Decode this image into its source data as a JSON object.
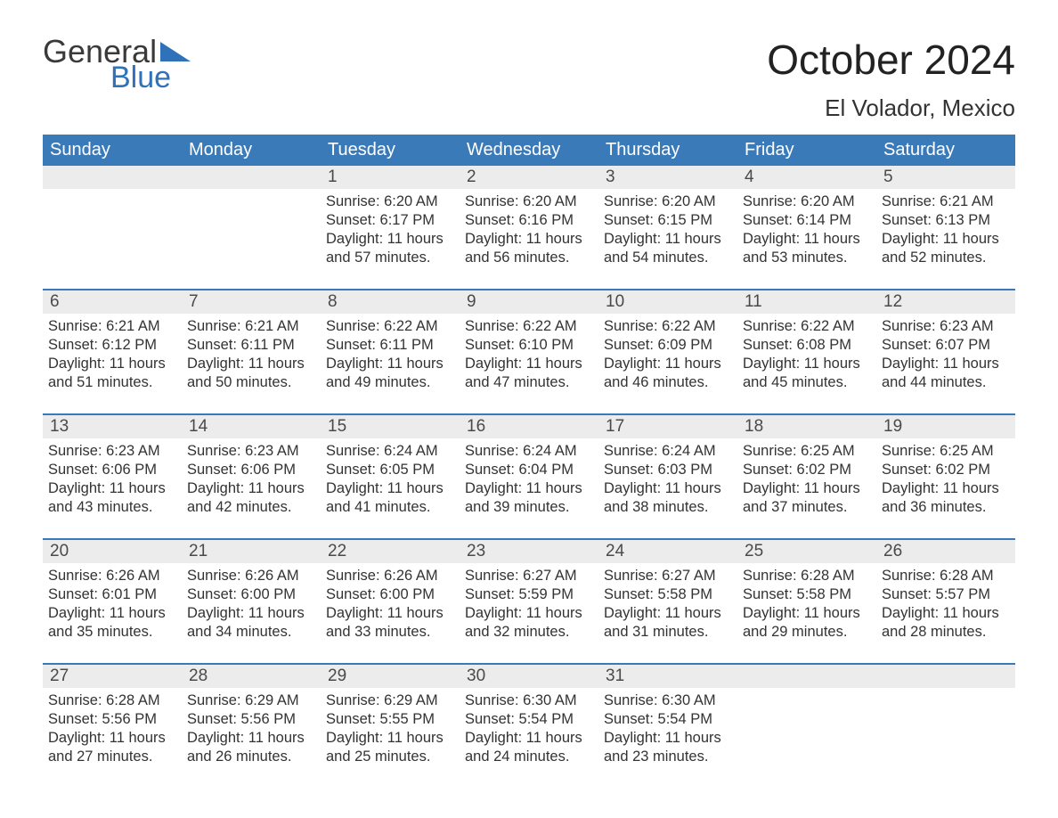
{
  "brand": {
    "general": "General",
    "blue": "Blue"
  },
  "title": "October 2024",
  "location": "El Volador, Mexico",
  "colors": {
    "header_bg": "#3a7ab8",
    "daynum_bg": "#ececec",
    "week_border": "#3a7ab8",
    "text": "#333333",
    "brand_blue": "#2f72b9"
  },
  "dow": [
    "Sunday",
    "Monday",
    "Tuesday",
    "Wednesday",
    "Thursday",
    "Friday",
    "Saturday"
  ],
  "weeks": [
    [
      null,
      null,
      {
        "n": "1",
        "sr": "Sunrise: 6:20 AM",
        "ss": "Sunset: 6:17 PM",
        "d1": "Daylight: 11 hours",
        "d2": "and 57 minutes."
      },
      {
        "n": "2",
        "sr": "Sunrise: 6:20 AM",
        "ss": "Sunset: 6:16 PM",
        "d1": "Daylight: 11 hours",
        "d2": "and 56 minutes."
      },
      {
        "n": "3",
        "sr": "Sunrise: 6:20 AM",
        "ss": "Sunset: 6:15 PM",
        "d1": "Daylight: 11 hours",
        "d2": "and 54 minutes."
      },
      {
        "n": "4",
        "sr": "Sunrise: 6:20 AM",
        "ss": "Sunset: 6:14 PM",
        "d1": "Daylight: 11 hours",
        "d2": "and 53 minutes."
      },
      {
        "n": "5",
        "sr": "Sunrise: 6:21 AM",
        "ss": "Sunset: 6:13 PM",
        "d1": "Daylight: 11 hours",
        "d2": "and 52 minutes."
      }
    ],
    [
      {
        "n": "6",
        "sr": "Sunrise: 6:21 AM",
        "ss": "Sunset: 6:12 PM",
        "d1": "Daylight: 11 hours",
        "d2": "and 51 minutes."
      },
      {
        "n": "7",
        "sr": "Sunrise: 6:21 AM",
        "ss": "Sunset: 6:11 PM",
        "d1": "Daylight: 11 hours",
        "d2": "and 50 minutes."
      },
      {
        "n": "8",
        "sr": "Sunrise: 6:22 AM",
        "ss": "Sunset: 6:11 PM",
        "d1": "Daylight: 11 hours",
        "d2": "and 49 minutes."
      },
      {
        "n": "9",
        "sr": "Sunrise: 6:22 AM",
        "ss": "Sunset: 6:10 PM",
        "d1": "Daylight: 11 hours",
        "d2": "and 47 minutes."
      },
      {
        "n": "10",
        "sr": "Sunrise: 6:22 AM",
        "ss": "Sunset: 6:09 PM",
        "d1": "Daylight: 11 hours",
        "d2": "and 46 minutes."
      },
      {
        "n": "11",
        "sr": "Sunrise: 6:22 AM",
        "ss": "Sunset: 6:08 PM",
        "d1": "Daylight: 11 hours",
        "d2": "and 45 minutes."
      },
      {
        "n": "12",
        "sr": "Sunrise: 6:23 AM",
        "ss": "Sunset: 6:07 PM",
        "d1": "Daylight: 11 hours",
        "d2": "and 44 minutes."
      }
    ],
    [
      {
        "n": "13",
        "sr": "Sunrise: 6:23 AM",
        "ss": "Sunset: 6:06 PM",
        "d1": "Daylight: 11 hours",
        "d2": "and 43 minutes."
      },
      {
        "n": "14",
        "sr": "Sunrise: 6:23 AM",
        "ss": "Sunset: 6:06 PM",
        "d1": "Daylight: 11 hours",
        "d2": "and 42 minutes."
      },
      {
        "n": "15",
        "sr": "Sunrise: 6:24 AM",
        "ss": "Sunset: 6:05 PM",
        "d1": "Daylight: 11 hours",
        "d2": "and 41 minutes."
      },
      {
        "n": "16",
        "sr": "Sunrise: 6:24 AM",
        "ss": "Sunset: 6:04 PM",
        "d1": "Daylight: 11 hours",
        "d2": "and 39 minutes."
      },
      {
        "n": "17",
        "sr": "Sunrise: 6:24 AM",
        "ss": "Sunset: 6:03 PM",
        "d1": "Daylight: 11 hours",
        "d2": "and 38 minutes."
      },
      {
        "n": "18",
        "sr": "Sunrise: 6:25 AM",
        "ss": "Sunset: 6:02 PM",
        "d1": "Daylight: 11 hours",
        "d2": "and 37 minutes."
      },
      {
        "n": "19",
        "sr": "Sunrise: 6:25 AM",
        "ss": "Sunset: 6:02 PM",
        "d1": "Daylight: 11 hours",
        "d2": "and 36 minutes."
      }
    ],
    [
      {
        "n": "20",
        "sr": "Sunrise: 6:26 AM",
        "ss": "Sunset: 6:01 PM",
        "d1": "Daylight: 11 hours",
        "d2": "and 35 minutes."
      },
      {
        "n": "21",
        "sr": "Sunrise: 6:26 AM",
        "ss": "Sunset: 6:00 PM",
        "d1": "Daylight: 11 hours",
        "d2": "and 34 minutes."
      },
      {
        "n": "22",
        "sr": "Sunrise: 6:26 AM",
        "ss": "Sunset: 6:00 PM",
        "d1": "Daylight: 11 hours",
        "d2": "and 33 minutes."
      },
      {
        "n": "23",
        "sr": "Sunrise: 6:27 AM",
        "ss": "Sunset: 5:59 PM",
        "d1": "Daylight: 11 hours",
        "d2": "and 32 minutes."
      },
      {
        "n": "24",
        "sr": "Sunrise: 6:27 AM",
        "ss": "Sunset: 5:58 PM",
        "d1": "Daylight: 11 hours",
        "d2": "and 31 minutes."
      },
      {
        "n": "25",
        "sr": "Sunrise: 6:28 AM",
        "ss": "Sunset: 5:58 PM",
        "d1": "Daylight: 11 hours",
        "d2": "and 29 minutes."
      },
      {
        "n": "26",
        "sr": "Sunrise: 6:28 AM",
        "ss": "Sunset: 5:57 PM",
        "d1": "Daylight: 11 hours",
        "d2": "and 28 minutes."
      }
    ],
    [
      {
        "n": "27",
        "sr": "Sunrise: 6:28 AM",
        "ss": "Sunset: 5:56 PM",
        "d1": "Daylight: 11 hours",
        "d2": "and 27 minutes."
      },
      {
        "n": "28",
        "sr": "Sunrise: 6:29 AM",
        "ss": "Sunset: 5:56 PM",
        "d1": "Daylight: 11 hours",
        "d2": "and 26 minutes."
      },
      {
        "n": "29",
        "sr": "Sunrise: 6:29 AM",
        "ss": "Sunset: 5:55 PM",
        "d1": "Daylight: 11 hours",
        "d2": "and 25 minutes."
      },
      {
        "n": "30",
        "sr": "Sunrise: 6:30 AM",
        "ss": "Sunset: 5:54 PM",
        "d1": "Daylight: 11 hours",
        "d2": "and 24 minutes."
      },
      {
        "n": "31",
        "sr": "Sunrise: 6:30 AM",
        "ss": "Sunset: 5:54 PM",
        "d1": "Daylight: 11 hours",
        "d2": "and 23 minutes."
      },
      null,
      null
    ]
  ]
}
